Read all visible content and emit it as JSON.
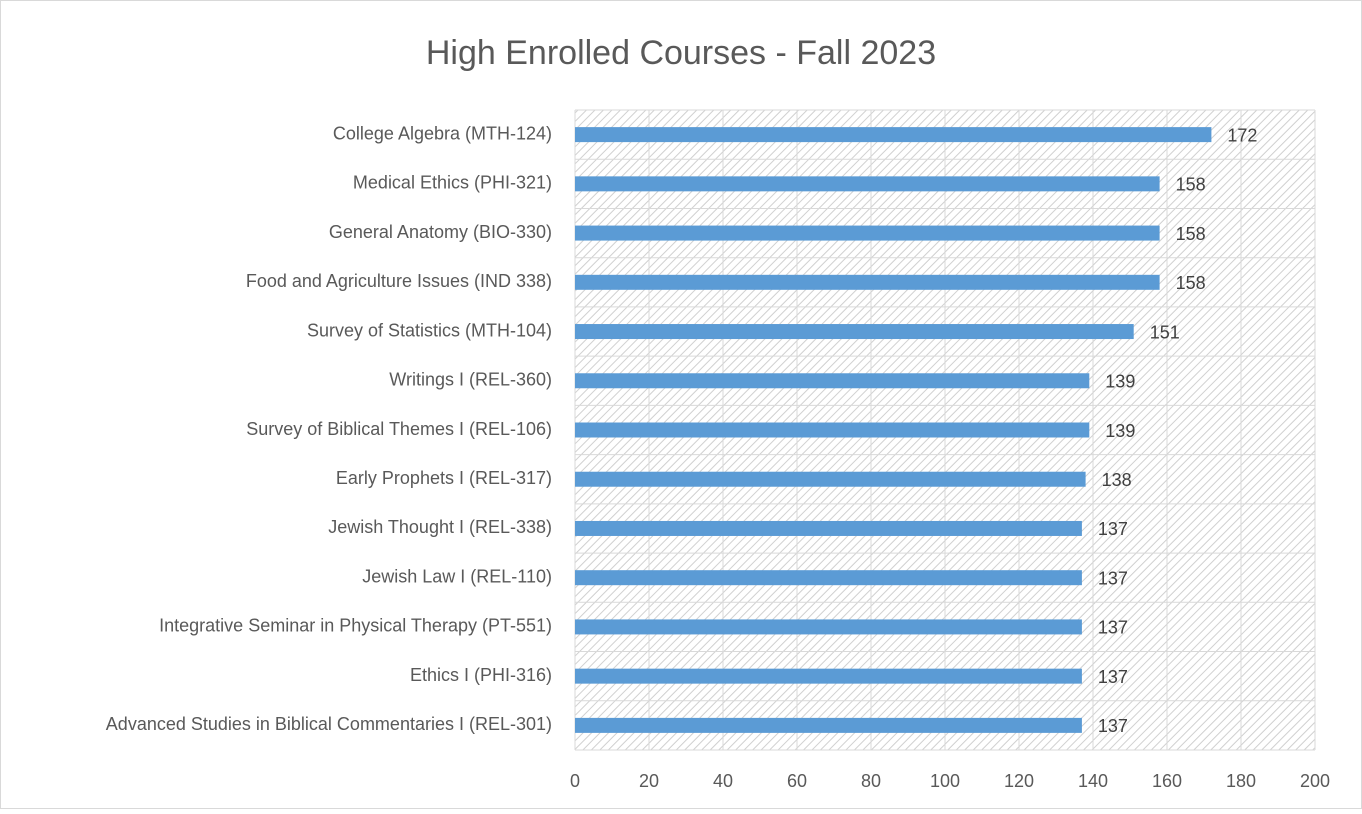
{
  "chart_data": {
    "type": "bar",
    "orientation": "horizontal",
    "title": "High Enrolled Courses - Fall 2023",
    "categories": [
      "College Algebra (MTH-124)",
      "Medical Ethics (PHI-321)",
      "General Anatomy (BIO-330)",
      "Food and Agriculture Issues (IND 338)",
      "Survey of Statistics (MTH-104)",
      "Writings I (REL-360)",
      "Survey of Biblical Themes I (REL-106)",
      "Early Prophets I (REL-317)",
      "Jewish Thought I (REL-338)",
      "Jewish Law I (REL-110)",
      "Integrative Seminar in Physical Therapy (PT-551)",
      "Ethics I (PHI-316)",
      "Advanced Studies in Biblical Commentaries I (REL-301)"
    ],
    "values": [
      172,
      158,
      158,
      158,
      151,
      139,
      139,
      138,
      137,
      137,
      137,
      137,
      137
    ],
    "color": "#5b9bd5",
    "xlim": [
      0,
      200
    ],
    "xticks": [
      0,
      20,
      40,
      60,
      80,
      100,
      120,
      140,
      160,
      180,
      200
    ],
    "grid": true
  }
}
